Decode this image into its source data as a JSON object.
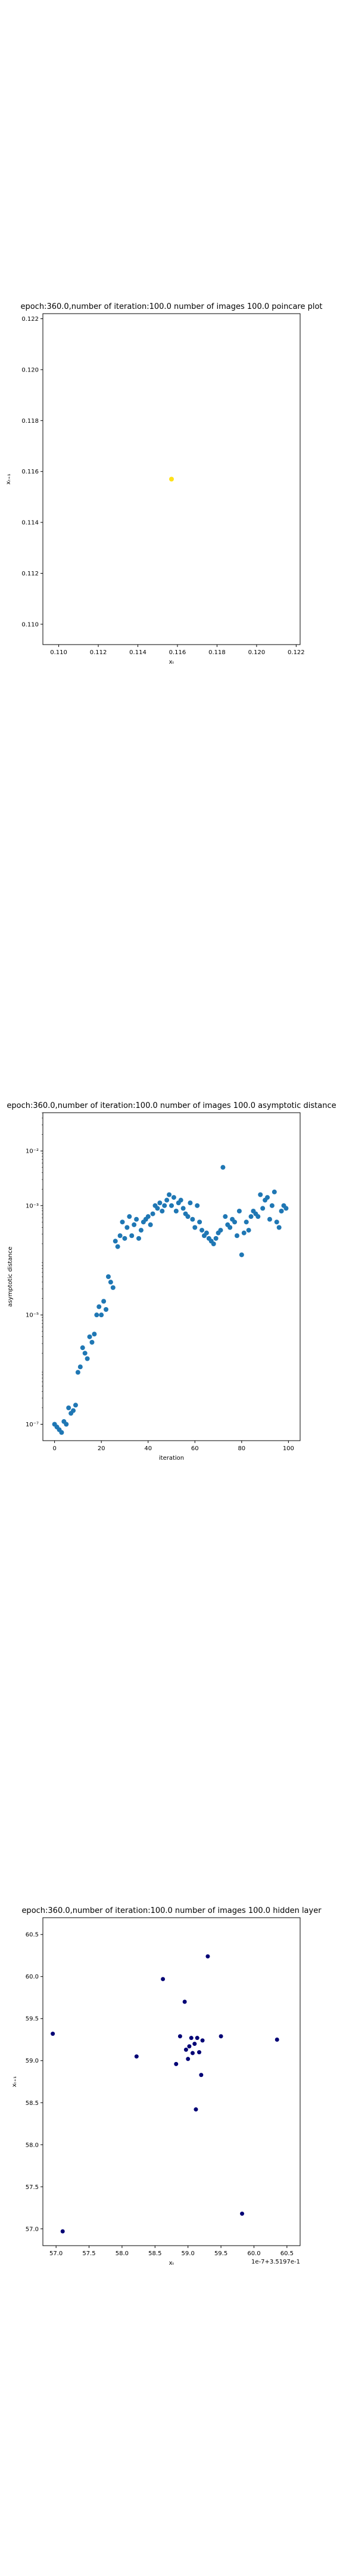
{
  "chart_data": [
    {
      "type": "scatter",
      "title": "epoch:360.0,number of iteration:100.0 number of images 100.0 poincare plot",
      "xlabel": "xₜ",
      "ylabel": "xₜ₊₁",
      "xlim": [
        0.1092,
        0.1222
      ],
      "ylim": [
        0.1092,
        0.1222
      ],
      "xticks": [
        0.11,
        0.112,
        0.114,
        0.116,
        0.118,
        0.12,
        0.122
      ],
      "yticks": [
        0.11,
        0.112,
        0.114,
        0.116,
        0.118,
        0.12,
        0.122
      ],
      "xtick_labels": [
        "0.110",
        "0.112",
        "0.114",
        "0.116",
        "0.118",
        "0.120",
        "0.122"
      ],
      "ytick_labels": [
        "0.110",
        "0.112",
        "0.114",
        "0.116",
        "0.118",
        "0.120",
        "0.122"
      ],
      "color": "#ffe119",
      "points": [
        [
          0.1157,
          0.1157
        ]
      ],
      "grid": false
    },
    {
      "type": "scatter",
      "title": "epoch:360.0,number of iteration:100.0  number of images 100.0 asymptotic distance",
      "xlabel": "iteration",
      "ylabel": "asymptotic distance",
      "yscale": "log",
      "xlim": [
        -5,
        105
      ],
      "ylim_exp": [
        -7.3,
        -1.3
      ],
      "xticks": [
        0,
        20,
        40,
        60,
        80,
        100
      ],
      "xtick_labels": [
        "0",
        "20",
        "40",
        "60",
        "80",
        "100"
      ],
      "yticks_exp": [
        -7,
        -5,
        -3,
        -2
      ],
      "ytick_labels": [
        "10⁻⁷",
        "10⁻⁵",
        "10⁻³",
        "10⁻²"
      ],
      "color": "#1f77b4",
      "x": [
        0,
        1,
        2,
        3,
        4,
        5,
        6,
        7,
        8,
        9,
        10,
        11,
        12,
        13,
        14,
        15,
        16,
        17,
        18,
        19,
        20,
        21,
        22,
        23,
        24,
        25,
        26,
        27,
        28,
        29,
        30,
        31,
        32,
        33,
        34,
        35,
        36,
        37,
        38,
        39,
        40,
        41,
        42,
        43,
        44,
        45,
        46,
        47,
        48,
        49,
        50,
        51,
        52,
        53,
        54,
        55,
        56,
        57,
        58,
        59,
        60,
        61,
        62,
        63,
        64,
        65,
        66,
        67,
        68,
        69,
        70,
        71,
        72,
        73,
        74,
        75,
        76,
        77,
        78,
        79,
        80,
        81,
        82,
        83,
        84,
        85,
        86,
        87,
        88,
        89,
        90,
        91,
        92,
        93,
        94,
        95,
        96,
        97,
        98,
        99
      ],
      "log10_y": [
        -7.0,
        -7.05,
        -7.1,
        -7.15,
        -6.95,
        -7.0,
        -6.7,
        -6.8,
        -6.75,
        -6.65,
        -6.05,
        -5.95,
        -5.6,
        -5.7,
        -5.8,
        -5.4,
        -5.5,
        -5.35,
        -5.0,
        -4.85,
        -5.0,
        -4.75,
        -4.9,
        -4.3,
        -4.4,
        -4.5,
        -3.65,
        -3.75,
        -3.55,
        -3.3,
        -3.6,
        -3.4,
        -3.2,
        -3.55,
        -3.35,
        -3.25,
        -3.6,
        -3.45,
        -3.3,
        -3.25,
        -3.2,
        -3.35,
        -3.15,
        -3.0,
        -3.05,
        -2.95,
        -3.1,
        -3.0,
        -2.9,
        -2.8,
        -3.0,
        -2.85,
        -3.1,
        -2.95,
        -2.9,
        -3.05,
        -3.15,
        -3.2,
        -2.95,
        -3.25,
        -3.4,
        -3.0,
        -3.3,
        -3.45,
        -3.55,
        -3.5,
        -3.6,
        -3.65,
        -3.7,
        -3.6,
        -3.5,
        -3.45,
        -2.3,
        -3.2,
        -3.35,
        -3.4,
        -3.25,
        -3.3,
        -3.55,
        -3.1,
        -3.9,
        -3.5,
        -3.3,
        -3.45,
        -3.2,
        -3.1,
        -3.15,
        -3.2,
        -2.8,
        -3.05,
        -2.9,
        -2.85,
        -3.25,
        -3.0,
        -2.75,
        -3.3,
        -3.4,
        -3.1,
        -3.0,
        -3.05
      ],
      "grid": false
    },
    {
      "type": "scatter",
      "title": "epoch:360.0,number of iteration:100.0  number of images 100.0 hidden layer",
      "xlabel": "xₜ",
      "ylabel": "xₜ₊₁",
      "offset_text": "1e-7+3.5197e-1",
      "xlim": [
        56.8,
        60.7
      ],
      "ylim": [
        56.8,
        60.7
      ],
      "xticks": [
        57.0,
        57.5,
        58.0,
        58.5,
        59.0,
        59.5,
        60.0,
        60.5
      ],
      "yticks": [
        57.0,
        57.5,
        58.0,
        58.5,
        59.0,
        59.5,
        60.0,
        60.5
      ],
      "xtick_labels": [
        "57.0",
        "57.5",
        "58.0",
        "58.5",
        "59.0",
        "59.5",
        "60.0",
        "60.5"
      ],
      "ytick_labels": [
        "57.0",
        "57.5",
        "58.0",
        "58.5",
        "59.0",
        "59.5",
        "60.0",
        "60.5"
      ],
      "color": "#000075",
      "points": [
        [
          56.95,
          59.32
        ],
        [
          57.1,
          56.97
        ],
        [
          58.22,
          59.05
        ],
        [
          58.62,
          59.97
        ],
        [
          58.82,
          58.96
        ],
        [
          58.88,
          59.29
        ],
        [
          58.95,
          59.7
        ],
        [
          58.97,
          59.13
        ],
        [
          59.0,
          59.02
        ],
        [
          59.02,
          59.17
        ],
        [
          59.05,
          59.27
        ],
        [
          59.07,
          59.09
        ],
        [
          59.1,
          59.2
        ],
        [
          59.12,
          58.42
        ],
        [
          59.14,
          59.27
        ],
        [
          59.17,
          59.1
        ],
        [
          59.2,
          58.83
        ],
        [
          59.22,
          59.24
        ],
        [
          59.3,
          60.24
        ],
        [
          59.5,
          59.29
        ],
        [
          59.82,
          57.18
        ],
        [
          60.35,
          59.25
        ]
      ],
      "grid": false
    }
  ]
}
